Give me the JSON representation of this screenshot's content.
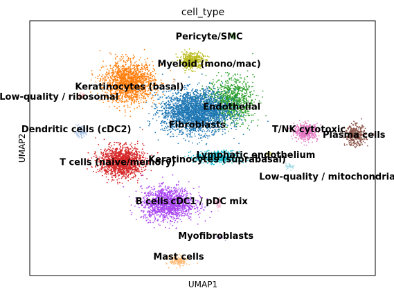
{
  "chart_data": {
    "type": "scatter",
    "title": "cell_type",
    "xlabel": "UMAP1",
    "ylabel": "UMAP2",
    "grid": false,
    "ticks": false,
    "clusters": [
      {
        "name": "Pericyte/SMC",
        "color": "#98df8a",
        "x": 3.3,
        "y": 9.3,
        "spread": [
          0.15,
          0.25
        ],
        "n": 80
      },
      {
        "name": "Myeloid (mono/mac)",
        "color": "#bcbd22",
        "x": 0.2,
        "y": 6.6,
        "spread": [
          0.8,
          0.8
        ],
        "n": 500
      },
      {
        "name": "Keratinocytes (basal)",
        "color": "#ff7f0e",
        "x": -4.5,
        "y": 4.2,
        "spread": [
          1.7,
          2.0
        ],
        "n": 1600
      },
      {
        "name": "Low-quality / ribosomal",
        "color": "#ff9896",
        "x": -8.2,
        "y": 2.8,
        "spread": [
          0.2,
          0.2
        ],
        "n": 20
      },
      {
        "name": "Endothelial",
        "color": "#2ca02c",
        "x": 3.1,
        "y": 2.2,
        "spread": [
          1.6,
          2.2
        ],
        "n": 1000
      },
      {
        "name": "Fibroblasts",
        "color": "#1f77b4",
        "x": 0.5,
        "y": 1.0,
        "spread": [
          2.3,
          2.1
        ],
        "n": 2600
      },
      {
        "name": "Dendritic cells (cDC2)",
        "color": "#aec7e8",
        "x": -8.2,
        "y": -1.2,
        "spread": [
          0.4,
          0.5
        ],
        "n": 120
      },
      {
        "name": "T/NK cytotoxic",
        "color": "#e377c2",
        "x": 8.8,
        "y": -1.2,
        "spread": [
          0.8,
          0.8
        ],
        "n": 450
      },
      {
        "name": "Plasma cells",
        "color": "#8c564b",
        "x": 12.5,
        "y": -1.6,
        "spread": [
          0.7,
          1.0
        ],
        "n": 400
      },
      {
        "name": "T cells (naive/memory)",
        "color": "#d62728",
        "x": -5.1,
        "y": -4.5,
        "spread": [
          1.5,
          1.5
        ],
        "n": 1400
      },
      {
        "name": "Keratinocytes (suprabasal)",
        "color": "#17becf",
        "x": 2.1,
        "y": -4.0,
        "spread": [
          1.5,
          0.6
        ],
        "n": 500
      },
      {
        "name": "Lymphatic endothelium",
        "color": "#dbdb8d",
        "x": 6.0,
        "y": -3.6,
        "spread": [
          0.3,
          0.3
        ],
        "n": 40
      },
      {
        "name": "Low-quality / mitochondrial",
        "color": "#9edae5",
        "x": 7.6,
        "y": -5.0,
        "spread": [
          0.3,
          0.3
        ],
        "n": 30
      },
      {
        "name": "B cells",
        "color": "#a945f0",
        "x": -1.6,
        "y": -9.1,
        "spread": [
          1.8,
          1.6
        ],
        "n": 1400
      },
      {
        "name": "cDC1 / pDC mix",
        "color": "#f7b6d2",
        "x": 2.2,
        "y": -9.1,
        "spread": [
          0.2,
          0.6
        ],
        "n": 60
      },
      {
        "name": "Myofibroblasts",
        "color": "#c5b0d5",
        "x": 2.3,
        "y": -12.8,
        "spread": [
          0.3,
          0.2
        ],
        "n": 30
      },
      {
        "name": "Mast cells",
        "color": "#ffbb78",
        "x": -0.8,
        "y": -15.4,
        "spread": [
          0.6,
          0.5
        ],
        "n": 150
      }
    ],
    "labels": [
      {
        "text": "Pericyte/SMC",
        "x": 1.5,
        "y": 9.2
      },
      {
        "text": "Myeloid (mono/mac)",
        "x": 1.5,
        "y": 6.2
      },
      {
        "text": "Keratinocytes (basal)",
        "x": -4.5,
        "y": 3.7
      },
      {
        "text": "Low-quality / ribosomal",
        "x": -9.8,
        "y": 2.6
      },
      {
        "text": "Endothelial",
        "x": 3.2,
        "y": 1.5
      },
      {
        "text": "Fibroblasts",
        "x": 0.6,
        "y": -0.5
      },
      {
        "text": "Dendritic cells (cDC2)",
        "x": -8.5,
        "y": -1.0
      },
      {
        "text": "T/NK cytotoxic",
        "x": 9.0,
        "y": -1.0
      },
      {
        "text": "Plasma cells",
        "x": 12.4,
        "y": -1.6
      },
      {
        "text": "Keratinocytes (suprabasal)",
        "x": 2.1,
        "y": -4.3
      },
      {
        "text": "Lymphatic endothelium",
        "x": 5.0,
        "y": -3.8
      },
      {
        "text": "T cells (naive/memory)",
        "x": -5.4,
        "y": -4.6
      },
      {
        "text": "Low-quality / mitochondrial",
        "x": 10.5,
        "y": -6.2
      },
      {
        "text": "B cells",
        "x": -2.8,
        "y": -8.9
      },
      {
        "text": "cDC1 / pDC mix",
        "x": 1.5,
        "y": -8.9
      },
      {
        "text": "Myofibroblasts",
        "x": 2.0,
        "y": -12.7
      },
      {
        "text": "Mast cells",
        "x": -0.8,
        "y": -15.0
      }
    ],
    "xlim": [
      -12,
      14
    ],
    "ylim": [
      -17,
      11
    ]
  }
}
